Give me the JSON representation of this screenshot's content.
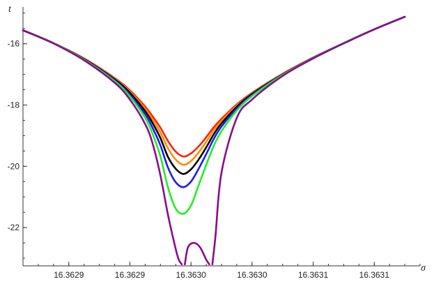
{
  "chart_data": {
    "type": "line",
    "xlabel": "σ",
    "ylabel": "t",
    "xlim": [
      16.36285,
      16.36311
    ],
    "ylim": [
      -23.25,
      -14.8
    ],
    "x_ticks": [
      {
        "value": 16.36288,
        "label": "16.3629"
      },
      {
        "value": 16.36292,
        "label": "16.3629"
      },
      {
        "value": 16.36296,
        "label": "16.3630"
      },
      {
        "value": 16.363,
        "label": "16.3630"
      },
      {
        "value": 16.36304,
        "label": "16.3631"
      },
      {
        "value": 16.36308,
        "label": "16.3631"
      }
    ],
    "y_ticks": [
      {
        "value": -16,
        "label": "-16"
      },
      {
        "value": -18,
        "label": "-18"
      },
      {
        "value": -20,
        "label": "-20"
      },
      {
        "value": -22,
        "label": "-22"
      }
    ],
    "y_minor_step": 0.5,
    "x_minor_step": 1e-05,
    "grid": false,
    "series": [
      {
        "color": "#ff2200",
        "x": [
          16.36285,
          16.36287,
          16.36289,
          16.36291,
          16.36292,
          16.36293,
          16.362935,
          16.36294,
          16.362945,
          16.36295,
          16.362955,
          16.36296,
          16.362965,
          16.36297,
          16.362975,
          16.36298,
          16.36299,
          16.363,
          16.36302,
          16.36304,
          16.36306,
          16.36308,
          16.3631
        ],
        "y": [
          -15.56,
          -15.98,
          -16.48,
          -17.12,
          -17.52,
          -18.05,
          -18.38,
          -18.74,
          -19.18,
          -19.52,
          -19.68,
          -19.58,
          -19.35,
          -19.05,
          -18.72,
          -18.45,
          -17.98,
          -17.6,
          -16.98,
          -16.45,
          -15.98,
          -15.53,
          -15.12
        ]
      },
      {
        "color": "#ff8c00",
        "x": [
          16.36285,
          16.36287,
          16.36289,
          16.36291,
          16.36292,
          16.36293,
          16.362935,
          16.36294,
          16.362945,
          16.36295,
          16.362955,
          16.36296,
          16.362965,
          16.36297,
          16.362975,
          16.36298,
          16.36299,
          16.363,
          16.36302,
          16.36304,
          16.36306,
          16.36308,
          16.3631
        ],
        "y": [
          -15.56,
          -15.98,
          -16.49,
          -17.14,
          -17.56,
          -18.12,
          -18.48,
          -18.9,
          -19.42,
          -19.78,
          -19.95,
          -19.83,
          -19.55,
          -19.2,
          -18.82,
          -18.52,
          -18.02,
          -17.62,
          -16.99,
          -16.45,
          -15.98,
          -15.53,
          -15.12
        ]
      },
      {
        "color": "#000000",
        "x": [
          16.36285,
          16.36287,
          16.36289,
          16.36291,
          16.36292,
          16.36293,
          16.362935,
          16.36294,
          16.362945,
          16.36295,
          16.362955,
          16.36296,
          16.362965,
          16.36297,
          16.362975,
          16.36298,
          16.36299,
          16.363,
          16.36302,
          16.36304,
          16.36306,
          16.36308,
          16.3631
        ],
        "y": [
          -15.56,
          -15.98,
          -16.5,
          -17.16,
          -17.6,
          -18.2,
          -18.6,
          -19.08,
          -19.7,
          -20.08,
          -20.25,
          -20.1,
          -19.78,
          -19.38,
          -18.95,
          -18.6,
          -18.06,
          -17.64,
          -17.0,
          -16.46,
          -15.98,
          -15.53,
          -15.12
        ]
      },
      {
        "color": "#1a1aff",
        "x": [
          16.36285,
          16.36287,
          16.36289,
          16.36291,
          16.36292,
          16.36293,
          16.362935,
          16.36294,
          16.362945,
          16.36295,
          16.362955,
          16.36296,
          16.362965,
          16.36297,
          16.362975,
          16.36298,
          16.36299,
          16.363,
          16.36302,
          16.36304,
          16.36306,
          16.36308,
          16.3631
        ],
        "y": [
          -15.56,
          -15.98,
          -16.51,
          -17.19,
          -17.66,
          -18.3,
          -18.76,
          -19.32,
          -20.05,
          -20.52,
          -20.68,
          -20.5,
          -20.08,
          -19.6,
          -19.1,
          -18.7,
          -18.11,
          -17.67,
          -17.01,
          -16.46,
          -15.98,
          -15.53,
          -15.12
        ]
      },
      {
        "color": "#22ee22",
        "x": [
          16.36285,
          16.36287,
          16.36289,
          16.36291,
          16.36292,
          16.36293,
          16.362935,
          16.36294,
          16.362945,
          16.36295,
          16.362955,
          16.36296,
          16.362965,
          16.36297,
          16.362975,
          16.36298,
          16.36299,
          16.363,
          16.36302,
          16.36304,
          16.36306,
          16.36308,
          16.3631
        ],
        "y": [
          -15.56,
          -15.98,
          -16.52,
          -17.22,
          -17.72,
          -18.42,
          -18.96,
          -19.68,
          -20.7,
          -21.38,
          -21.55,
          -21.28,
          -20.62,
          -19.95,
          -19.32,
          -18.85,
          -18.18,
          -17.71,
          -17.02,
          -16.47,
          -15.98,
          -15.53,
          -15.12
        ]
      },
      {
        "color": "#8b0a8b",
        "x": [
          16.36285,
          16.36287,
          16.36289,
          16.36291,
          16.36292,
          16.36293,
          16.362935,
          16.36294,
          16.362945,
          16.36295,
          16.362952,
          16.362954
        ],
        "y": [
          -15.56,
          -15.99,
          -16.54,
          -17.27,
          -17.82,
          -18.62,
          -19.28,
          -20.3,
          -21.6,
          -22.7,
          -23.05,
          -23.2
        ]
      },
      {
        "color": "#8b0a8b",
        "x": [
          16.362956,
          16.362958,
          16.362962,
          16.362966,
          16.36297,
          16.362972
        ],
        "y": [
          -23.2,
          -22.65,
          -22.5,
          -22.65,
          -23.05,
          -23.2
        ]
      },
      {
        "color": "#8b0a8b",
        "x": [
          16.362974,
          16.362976,
          16.36298,
          16.36299,
          16.363,
          16.36302,
          16.36304,
          16.36306,
          16.36308,
          16.3631
        ],
        "y": [
          -23.2,
          -22.3,
          -20.2,
          -18.42,
          -17.82,
          -17.05,
          -16.48,
          -15.99,
          -15.53,
          -15.12
        ]
      }
    ]
  }
}
